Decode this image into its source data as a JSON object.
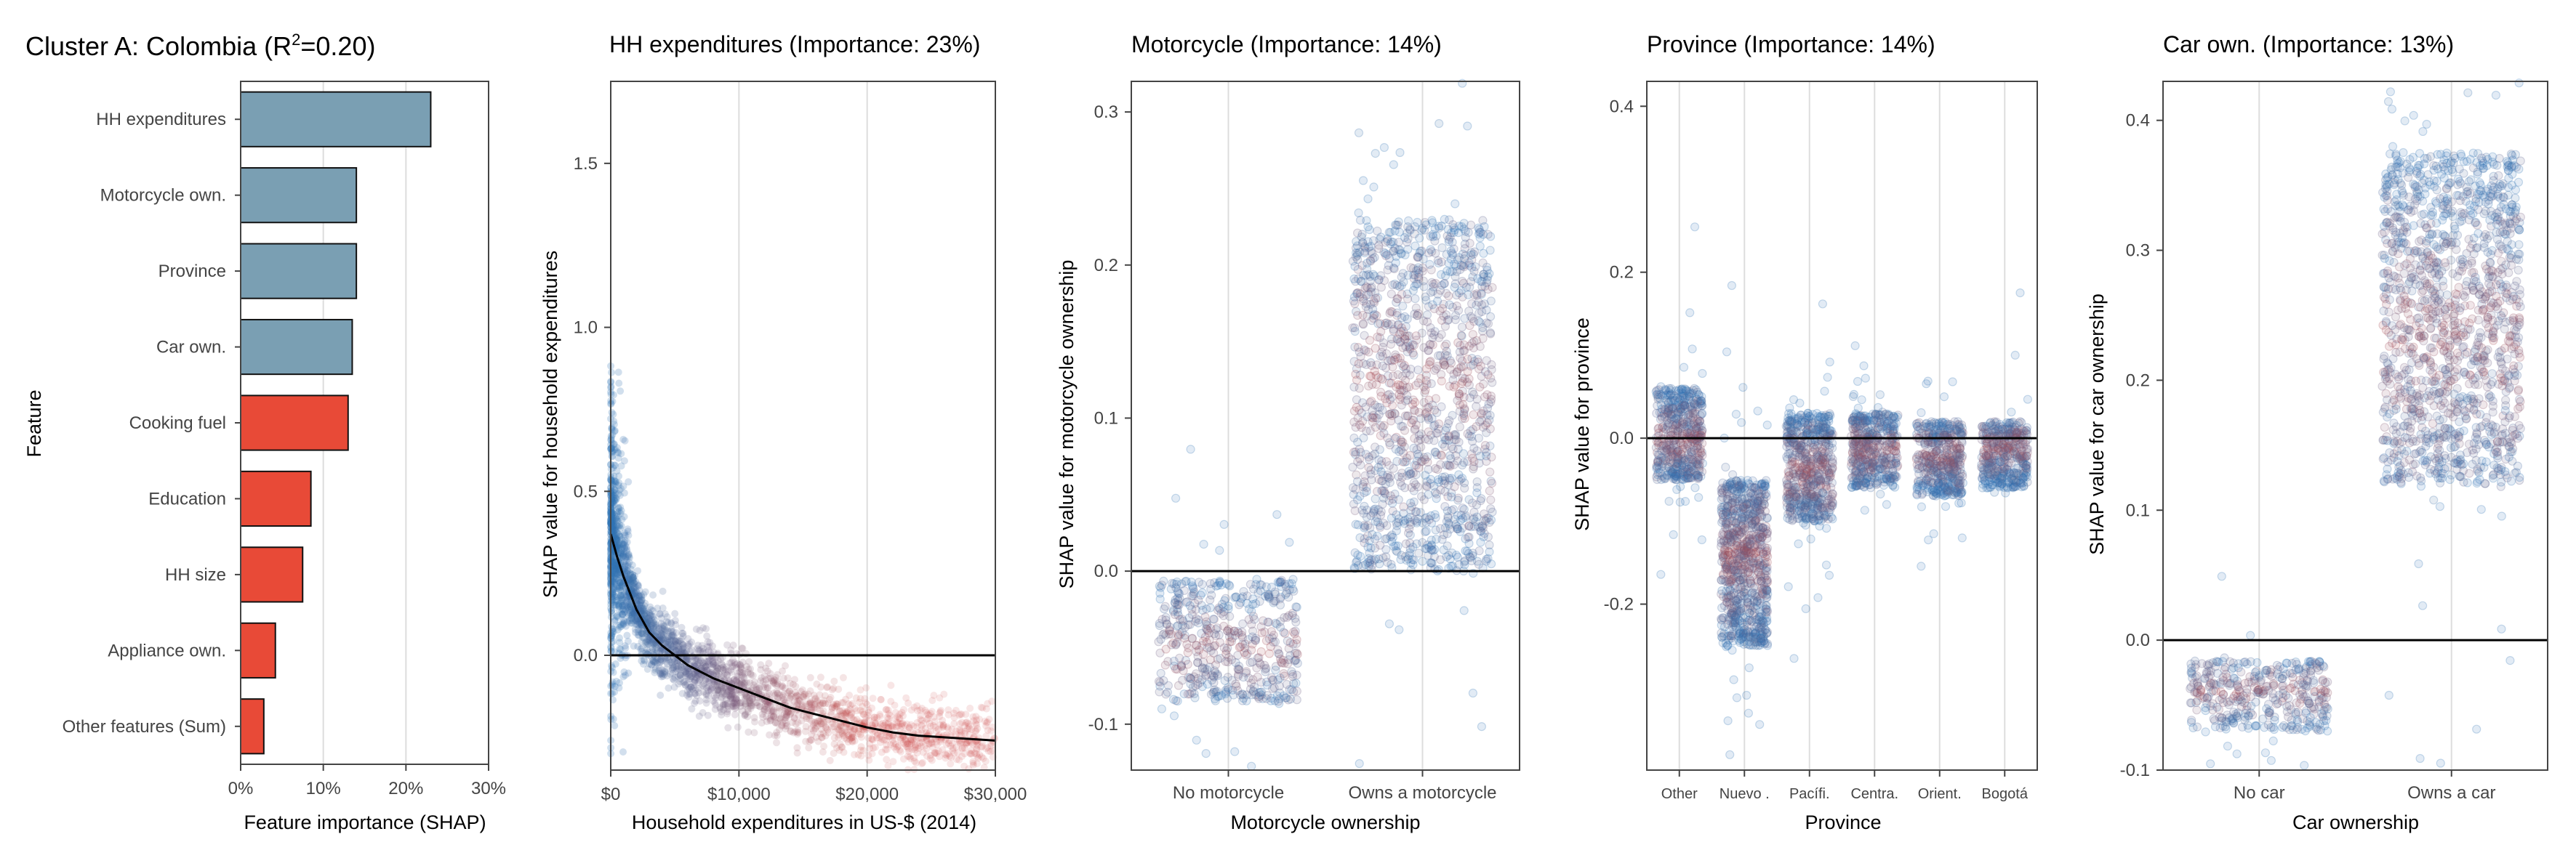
{
  "colors": {
    "blue_bar": "#7a9fb3",
    "red_bar": "#e84a37",
    "point_blue": "#2f74b5",
    "point_red": "#c8403a",
    "grid": "#dddddd",
    "axis": "#444444"
  },
  "chart_data": [
    {
      "type": "bar",
      "orientation": "horizontal",
      "title": "Cluster A: Colombia (R",
      "title_sup": "2",
      "title_tail": "=0.20)",
      "xlabel": "Feature importance (SHAP)",
      "ylabel": "Feature",
      "xlim": [
        0,
        0.3
      ],
      "xticks": [
        0,
        0.1,
        0.2,
        0.3
      ],
      "xtick_labels": [
        "0%",
        "10%",
        "20%",
        "30%"
      ],
      "categories": [
        "HH expenditures",
        "Motorcycle own.",
        "Province",
        "Car own.",
        "Cooking fuel",
        "Education",
        "HH size",
        "Appliance own.",
        "Other features (Sum)"
      ],
      "values": [
        0.23,
        0.14,
        0.14,
        0.135,
        0.13,
        0.085,
        0.075,
        0.042,
        0.028
      ],
      "bar_colors": [
        "blue",
        "blue",
        "blue",
        "blue",
        "red",
        "red",
        "red",
        "red",
        "red"
      ]
    },
    {
      "type": "scatter",
      "title": "HH expenditures (Importance: 23%)",
      "xlabel": "Household expenditures in US-$ (2014)",
      "ylabel": "SHAP value for household expenditures",
      "xlim": [
        0,
        30000
      ],
      "ylim": [
        -0.35,
        1.75
      ],
      "xticks": [
        0,
        10000,
        20000,
        30000
      ],
      "xtick_labels": [
        "$0",
        "$10,000",
        "$20,000",
        "$30,000"
      ],
      "yticks": [
        0,
        0.5,
        1.0,
        1.5
      ],
      "ytick_labels": [
        "0.0",
        "0.5",
        "1.0",
        "1.5"
      ],
      "trend": {
        "x": [
          0,
          500,
          1000,
          2000,
          3000,
          4000,
          5000,
          6000,
          7000,
          8000,
          10000,
          12000,
          14000,
          16000,
          18000,
          20000,
          22000,
          24000,
          26000,
          28000,
          30000
        ],
        "y": [
          0.37,
          0.3,
          0.24,
          0.14,
          0.07,
          0.03,
          0.0,
          -0.03,
          -0.05,
          -0.07,
          -0.1,
          -0.13,
          -0.16,
          -0.18,
          -0.2,
          -0.22,
          -0.235,
          -0.245,
          -0.25,
          -0.255,
          -0.26
        ]
      },
      "point_cloud": {
        "x_range": [
          0,
          30000
        ],
        "spread": 0.05
      }
    },
    {
      "type": "scatter",
      "subtype": "categorical-jitter",
      "title": "Motorcycle (Importance: 14%)",
      "xlabel": "Motorcycle ownership",
      "ylabel": "SHAP value for motorcycle ownership",
      "ylim": [
        -0.13,
        0.32
      ],
      "yticks": [
        -0.1,
        0,
        0.1,
        0.2,
        0.3
      ],
      "ytick_labels": [
        "-0.1",
        "0.0",
        "0.1",
        "0.2",
        "0.3"
      ],
      "categories": [
        "No motorcycle",
        "Owns a motorcycle"
      ],
      "ranges": [
        [
          -0.085,
          -0.005
        ],
        [
          0.0,
          0.23
        ]
      ],
      "centers": [
        -0.05,
        0.12
      ]
    },
    {
      "type": "scatter",
      "subtype": "categorical-jitter",
      "title": "Province (Importance: 14%)",
      "xlabel": "Province",
      "ylabel": "SHAP value for province",
      "ylim": [
        -0.4,
        0.43
      ],
      "yticks": [
        -0.2,
        0,
        0.2,
        0.4
      ],
      "ytick_labels": [
        "-0.2",
        "0.0",
        "0.2",
        "0.4"
      ],
      "categories": [
        "Other",
        "Nuevo .",
        "Pacífi.",
        "Centra.",
        "Orient.",
        "Bogotá"
      ],
      "ranges": [
        [
          -0.05,
          0.06
        ],
        [
          -0.25,
          -0.05
        ],
        [
          -0.1,
          0.03
        ],
        [
          -0.06,
          0.03
        ],
        [
          -0.07,
          0.02
        ],
        [
          -0.06,
          0.02
        ]
      ],
      "centers": [
        0.0,
        -0.14,
        -0.04,
        -0.015,
        -0.02,
        -0.01
      ]
    },
    {
      "type": "scatter",
      "subtype": "categorical-jitter",
      "title": "Car own. (Importance: 13%)",
      "xlabel": "Car ownership",
      "ylabel": "SHAP value for car ownership",
      "ylim": [
        -0.1,
        0.43
      ],
      "yticks": [
        -0.1,
        0,
        0.1,
        0.2,
        0.3,
        0.4
      ],
      "ytick_labels": [
        "-0.1",
        "0.0",
        "0.1",
        "0.2",
        "0.3",
        "0.4"
      ],
      "categories": [
        "No car",
        "Owns a car"
      ],
      "ranges": [
        [
          -0.07,
          -0.015
        ],
        [
          0.12,
          0.375
        ]
      ],
      "centers": [
        -0.04,
        0.23
      ]
    }
  ]
}
